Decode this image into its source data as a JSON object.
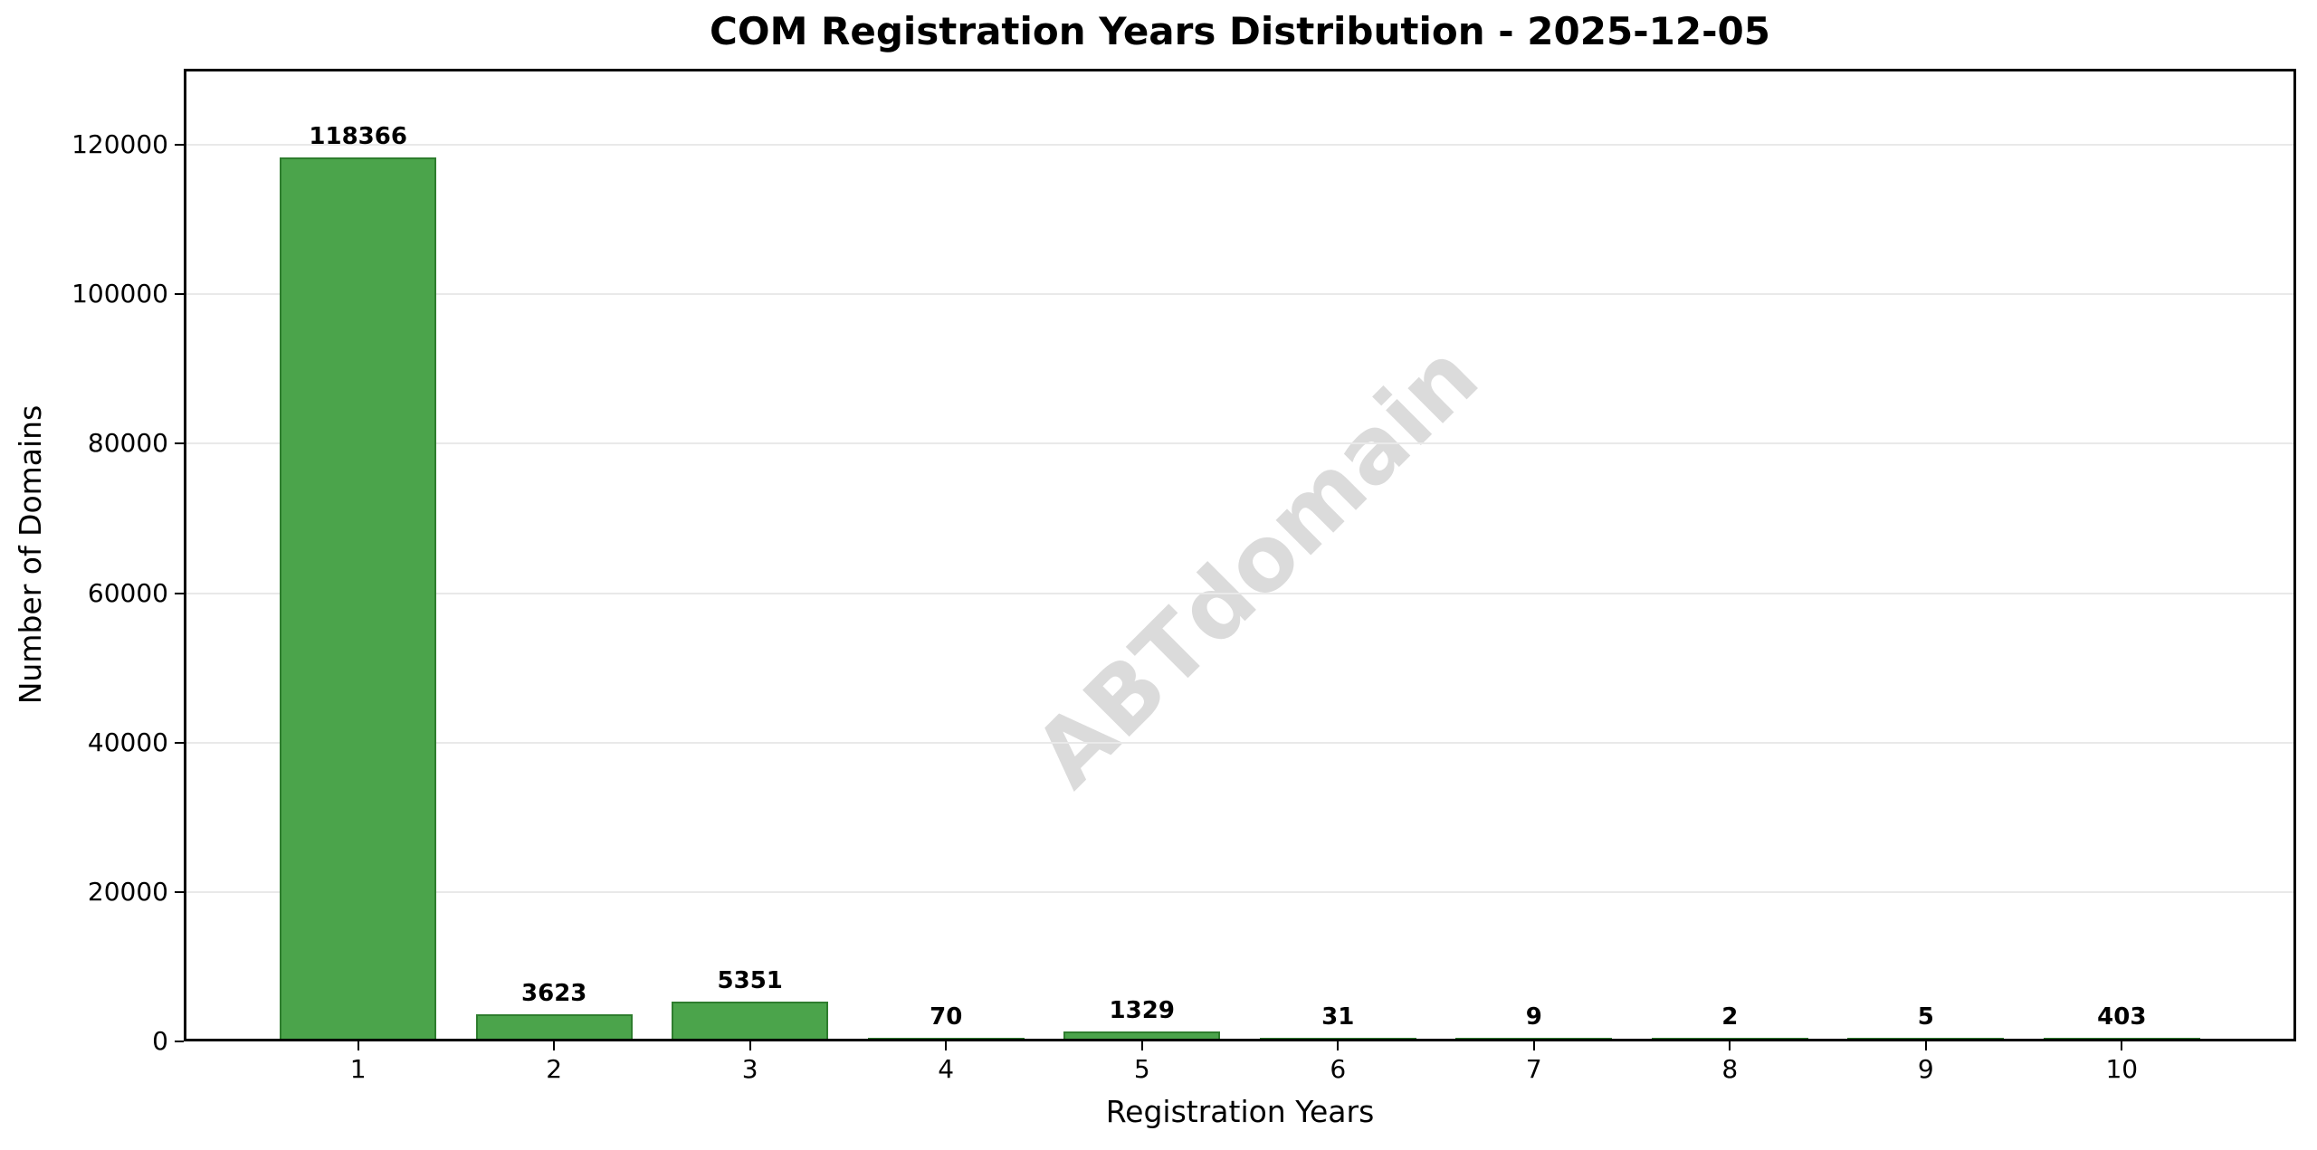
{
  "chart_data": {
    "type": "bar",
    "title": "COM Registration Years Distribution - 2025-12-05",
    "xlabel": "Registration Years",
    "ylabel": "Number of Domains",
    "categories": [
      "1",
      "2",
      "3",
      "4",
      "5",
      "6",
      "7",
      "8",
      "9",
      "10"
    ],
    "values": [
      118366,
      3623,
      5351,
      70,
      1329,
      31,
      9,
      2,
      5,
      403
    ],
    "bar_labels_visible": true,
    "yticks": [
      0,
      20000,
      40000,
      60000,
      80000,
      100000,
      120000
    ],
    "ylim": [
      0,
      130203
    ],
    "xlim": [
      0.11,
      10.89
    ],
    "bar_width_fraction": 0.8,
    "grid": "horizontal",
    "legend": "none",
    "watermark": "ABTdomain",
    "colors": {
      "bar_fill": "#4BA44B",
      "bar_edge": "#2E7D2E",
      "grid": "#E9E9E9",
      "axes_frame": "#000000",
      "text": "#000000",
      "watermark": "#DBDBDB",
      "background": "#FFFFFF"
    }
  }
}
